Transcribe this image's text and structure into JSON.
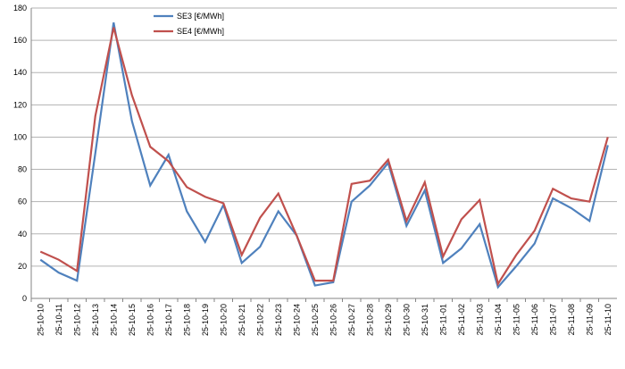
{
  "chart_data": {
    "type": "line",
    "categories": [
      "25-10-10",
      "25-10-11",
      "25-10-12",
      "25-10-13",
      "25-10-14",
      "25-10-15",
      "25-10-16",
      "25-10-17",
      "25-10-18",
      "25-10-19",
      "25-10-20",
      "25-10-21",
      "25-10-22",
      "25-10-23",
      "25-10-24",
      "25-10-25",
      "25-10-26",
      "25-10-27",
      "25-10-28",
      "25-10-29",
      "25-10-30",
      "25-10-31",
      "25-11-01",
      "25-11-02",
      "25-11-03",
      "25-11-04",
      "25-11-05",
      "25-11-06",
      "25-11-07",
      "25-11-08",
      "25-11-09",
      "25-11-10"
    ],
    "series": [
      {
        "name": "SE3 [€/MWh]",
        "color": "#4f81bd",
        "values": [
          24,
          16,
          11,
          90,
          171,
          110,
          70,
          89,
          54,
          35,
          58,
          22,
          32,
          54,
          39,
          8,
          10,
          60,
          70,
          84,
          45,
          67,
          22,
          31,
          46,
          7,
          20,
          34,
          62,
          56,
          48,
          95
        ]
      },
      {
        "name": "SE4 [€/MWh]",
        "color": "#c0504d",
        "values": [
          29,
          24,
          17,
          113,
          168,
          126,
          94,
          85,
          69,
          63,
          59,
          27,
          50,
          65,
          39,
          11,
          11,
          71,
          73,
          86,
          48,
          72,
          26,
          49,
          61,
          9,
          27,
          42,
          68,
          62,
          60,
          100
        ]
      }
    ],
    "ylim": [
      0,
      180
    ],
    "yticks": [
      0,
      20,
      40,
      60,
      80,
      100,
      120,
      140,
      160,
      180
    ],
    "grid": true
  }
}
